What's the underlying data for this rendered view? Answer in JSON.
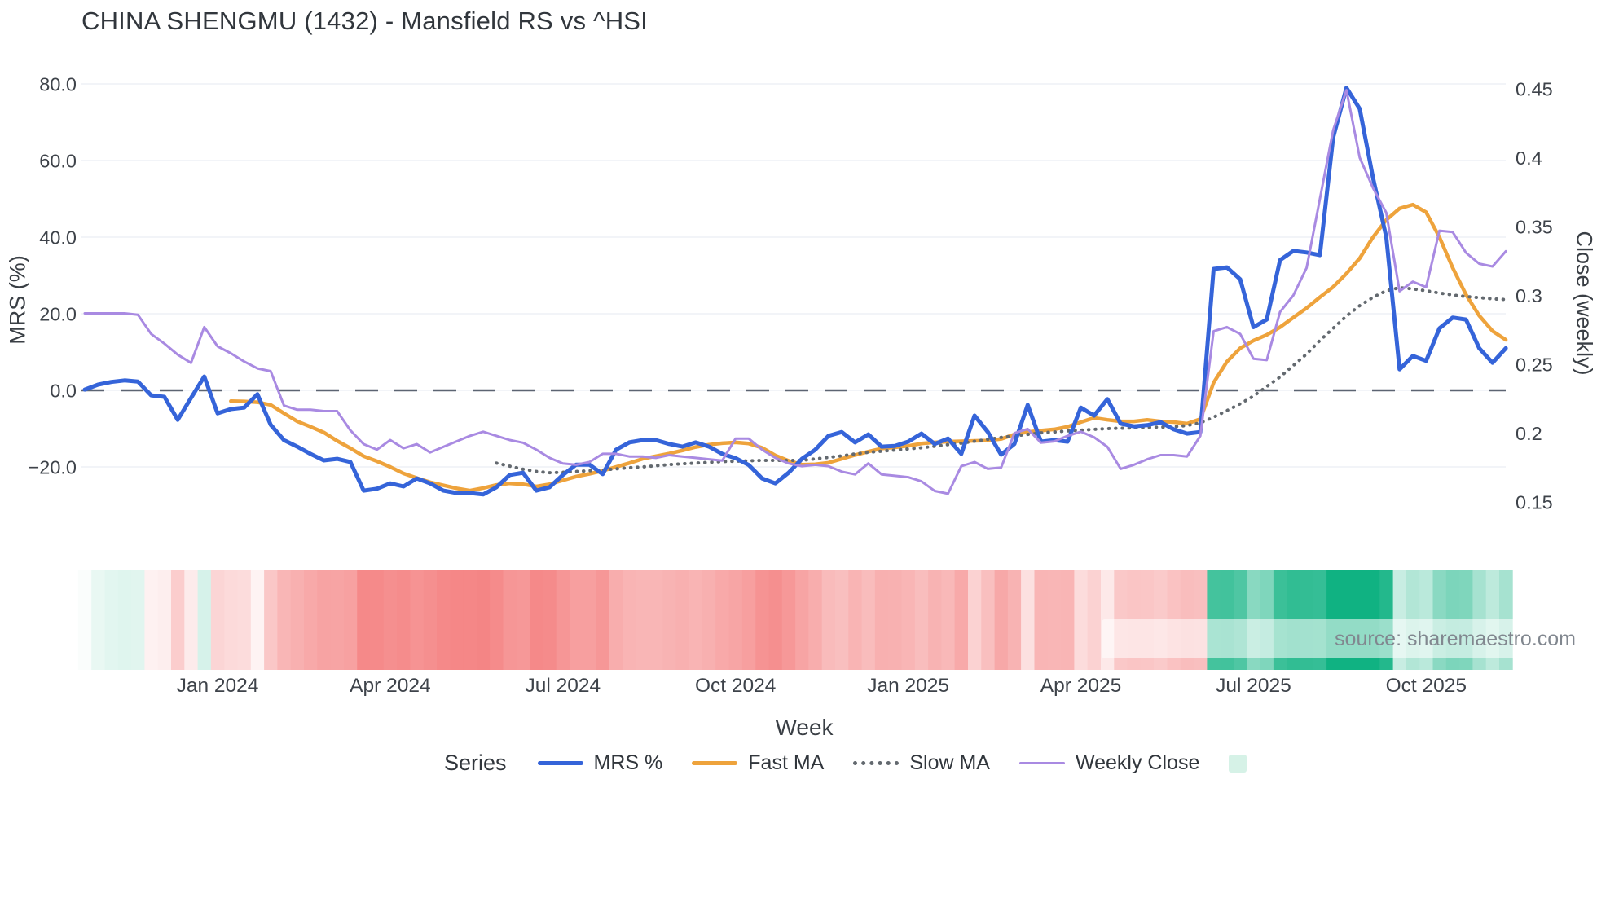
{
  "title": "CHINA SHENGMU (1432) - Mansfield RS vs ^HSI",
  "source_label": "source: sharemaestro.com",
  "axes": {
    "x_title": "Week",
    "y_left_title": "MRS (%)",
    "y_right_title": "Close (weekly)"
  },
  "legend": {
    "heading": "Series",
    "items": [
      {
        "label": "MRS %"
      },
      {
        "label": "Fast MA"
      },
      {
        "label": "Slow MA"
      },
      {
        "label": "Weekly Close"
      },
      {
        "label": ""
      }
    ]
  },
  "colors": {
    "mrs_blue": "#3564d9",
    "fast_ma_orange": "#eea33c",
    "slow_ma_gray": "#63696f",
    "weekly_close_purple": "#a98ae2",
    "zero_dash": "#5c6472",
    "gridline": "#e9edf3",
    "tick_text": "#3e434a",
    "heat_positive": "#10b282",
    "heat_negative": "#f05252",
    "legend_heat_swatch": "#d6f2e7"
  },
  "chart_data": {
    "type": "line",
    "title": "CHINA SHENGMU (1432) - Mansfield RS vs ^HSI",
    "xlabel": "Week",
    "ylabel_left": "MRS (%)",
    "ylabel_right": "Close (weekly)",
    "x_unit": "weekly points, late Oct 2023 through early Nov 2025",
    "grid": true,
    "legend_position": "bottom",
    "x_ticks": [
      {
        "label": "Jan 2024",
        "week": 10
      },
      {
        "label": "Apr 2024",
        "week": 23
      },
      {
        "label": "Jul 2024",
        "week": 36
      },
      {
        "label": "Oct 2024",
        "week": 49
      },
      {
        "label": "Jan 2025",
        "week": 62
      },
      {
        "label": "Apr 2025",
        "week": 75
      },
      {
        "label": "Jul 2025",
        "week": 88
      },
      {
        "label": "Oct 2025",
        "week": 101
      }
    ],
    "y_left_ticks": [
      {
        "label": "80.0",
        "value": 80
      },
      {
        "label": "60.0",
        "value": 60
      },
      {
        "label": "40.0",
        "value": 40
      },
      {
        "label": "20.0",
        "value": 20
      },
      {
        "label": "0.0",
        "value": 0
      },
      {
        "label": "−20.0",
        "value": -20
      }
    ],
    "y_right_ticks": [
      {
        "label": "0.45",
        "value": 0.45
      },
      {
        "label": "0.4",
        "value": 0.4
      },
      {
        "label": "0.35",
        "value": 0.35
      },
      {
        "label": "0.3",
        "value": 0.3
      },
      {
        "label": "0.25",
        "value": 0.25
      },
      {
        "label": "0.2",
        "value": 0.2
      },
      {
        "label": "0.15",
        "value": 0.15
      }
    ],
    "y_left_range": [
      -34,
      84
    ],
    "y_right_range": [
      0.12,
      0.46
    ],
    "zero_dashed_line_left_value": 0,
    "series": [
      {
        "name": "MRS %",
        "axis": "left",
        "style": "solid",
        "color": "#3564d9",
        "width": 5,
        "values": [
          0.2,
          1.5,
          2.2,
          2.6,
          2.3,
          -1.3,
          -1.7,
          -7.7,
          -2,
          3.6,
          -6,
          -4.9,
          -4.5,
          -1,
          -9,
          -13,
          -14.7,
          -16.6,
          -18.3,
          -17.9,
          -18.7,
          -26.2,
          -25.7,
          -24.3,
          -25.1,
          -23,
          -24.3,
          -26.2,
          -26.8,
          -26.8,
          -27.2,
          -25.3,
          -22.1,
          -21.5,
          -26.2,
          -25.3,
          -22.1,
          -19.4,
          -19.4,
          -21.9,
          -15.5,
          -13.6,
          -13,
          -13,
          -14,
          -14.7,
          -13.6,
          -14.7,
          -16.6,
          -17.7,
          -19.5,
          -23,
          -24.3,
          -21.5,
          -17.9,
          -15.5,
          -11.9,
          -10.9,
          -13.6,
          -11.5,
          -14.7,
          -14.5,
          -13.4,
          -11.3,
          -14,
          -12.6,
          -16.6,
          -6.6,
          -10.9,
          -16.8,
          -14,
          -3.8,
          -13.4,
          -13,
          -13.4,
          -4.5,
          -6.6,
          -2.3,
          -8.7,
          -9.4,
          -9.1,
          -8.3,
          -10.2,
          -11.3,
          -10.9,
          31.7,
          32.1,
          29,
          16.5,
          18.5,
          34,
          36.4,
          36,
          35.3,
          66,
          79,
          73.5,
          55.5,
          40,
          5.5,
          9,
          7.7,
          16.2,
          19,
          18.5,
          11,
          7.2,
          11
        ]
      },
      {
        "name": "Fast MA",
        "axis": "left",
        "style": "solid",
        "color": "#eea33c",
        "width": 4.5,
        "values": [
          null,
          null,
          null,
          null,
          null,
          null,
          null,
          null,
          null,
          null,
          null,
          -2.8,
          -2.9,
          -3.1,
          -3.8,
          -6,
          -8.1,
          -9.5,
          -11,
          -13.2,
          -15.1,
          -17.2,
          -18.5,
          -20,
          -21.7,
          -22.9,
          -24,
          -24.8,
          -25.6,
          -26.2,
          -25.5,
          -24.7,
          -24.3,
          -24.5,
          -25.1,
          -24.5,
          -23.5,
          -22.5,
          -21.8,
          -21,
          -20,
          -19,
          -17.9,
          -17.2,
          -16.5,
          -15.7,
          -14.8,
          -14.2,
          -13.8,
          -13.6,
          -13.9,
          -15,
          -17,
          -18.4,
          -19.4,
          -19.3,
          -18.9,
          -17.9,
          -16.9,
          -16,
          -15.2,
          -14.9,
          -14.5,
          -13.9,
          -13.6,
          -13.4,
          -13.3,
          -13.2,
          -13.1,
          -12.7,
          -11.5,
          -10.9,
          -10.5,
          -10.2,
          -9.5,
          -8.3,
          -7.2,
          -7.7,
          -8.1,
          -8.1,
          -7.7,
          -8.1,
          -8.3,
          -8.7,
          -7.5,
          2,
          7.5,
          11,
          13,
          14.5,
          16.5,
          19,
          21.5,
          24.3,
          27,
          30.5,
          34.5,
          40,
          44.5,
          47.5,
          48.5,
          46.5,
          40,
          32,
          25,
          19.5,
          15.5,
          13.2
        ]
      },
      {
        "name": "Slow MA",
        "axis": "left",
        "style": "dotted",
        "color": "#63696f",
        "width": 4,
        "values": [
          null,
          null,
          null,
          null,
          null,
          null,
          null,
          null,
          null,
          null,
          null,
          null,
          null,
          null,
          null,
          null,
          null,
          null,
          null,
          null,
          null,
          null,
          null,
          null,
          null,
          null,
          null,
          null,
          null,
          null,
          null,
          -19,
          -19.8,
          -20.6,
          -21.2,
          -21.5,
          -21.4,
          -21.2,
          -21,
          -20.8,
          -20.5,
          -20.2,
          -20,
          -19.7,
          -19.4,
          -19.2,
          -19,
          -18.8,
          -18.6,
          -18.5,
          -18.4,
          -18.3,
          -18.3,
          -18.3,
          -18.3,
          -17.9,
          -17.5,
          -17.1,
          -16.6,
          -16.2,
          -15.9,
          -15.6,
          -15.3,
          -15,
          -14.6,
          -14.2,
          -13.8,
          -13.3,
          -12.8,
          -12.3,
          -11.9,
          -11.5,
          -11.1,
          -10.9,
          -10.6,
          -10.4,
          -10.2,
          -10,
          -9.9,
          -9.8,
          -9.7,
          -9.6,
          -9.5,
          -9.2,
          -8.5,
          -7,
          -5.3,
          -3.5,
          -1.5,
          1,
          3.5,
          6.5,
          9.5,
          13,
          16.2,
          19.4,
          22.1,
          24.3,
          26,
          26.8,
          26.5,
          26,
          25.4,
          24.9,
          24.5,
          24.2,
          23.9,
          23.7
        ]
      },
      {
        "name": "Weekly Close",
        "axis": "right",
        "style": "solid",
        "color": "#a98ae2",
        "width": 3,
        "values": [
          0.287,
          0.287,
          0.287,
          0.287,
          0.286,
          0.272,
          0.265,
          0.257,
          0.251,
          0.277,
          0.263,
          0.258,
          0.252,
          0.247,
          0.245,
          0.22,
          0.217,
          0.217,
          0.216,
          0.216,
          0.202,
          0.192,
          0.188,
          0.195,
          0.189,
          0.192,
          0.186,
          0.19,
          0.194,
          0.198,
          0.201,
          0.198,
          0.195,
          0.193,
          0.188,
          0.182,
          0.178,
          0.177,
          0.179,
          0.185,
          0.185,
          0.183,
          0.183,
          0.182,
          0.184,
          0.183,
          0.182,
          0.181,
          0.18,
          0.196,
          0.196,
          0.188,
          0.182,
          0.178,
          0.176,
          0.177,
          0.176,
          0.172,
          0.17,
          0.178,
          0.17,
          0.169,
          0.168,
          0.165,
          0.158,
          0.156,
          0.176,
          0.179,
          0.174,
          0.175,
          0.2,
          0.203,
          0.193,
          0.194,
          0.198,
          0.201,
          0.197,
          0.19,
          0.174,
          0.177,
          0.181,
          0.184,
          0.184,
          0.183,
          0.198,
          0.274,
          0.277,
          0.272,
          0.254,
          0.253,
          0.288,
          0.3,
          0.32,
          0.37,
          0.42,
          0.449,
          0.4,
          0.378,
          0.36,
          0.303,
          0.31,
          0.306,
          0.347,
          0.346,
          0.331,
          0.323,
          0.321,
          0.332
        ]
      }
    ],
    "heatmap": {
      "name": "MRS heat band",
      "encodes": "sign and magnitude of weekly MRS % (red negative, green positive)",
      "positive_color": "#10b282",
      "negative_color": "#f05252"
    }
  }
}
